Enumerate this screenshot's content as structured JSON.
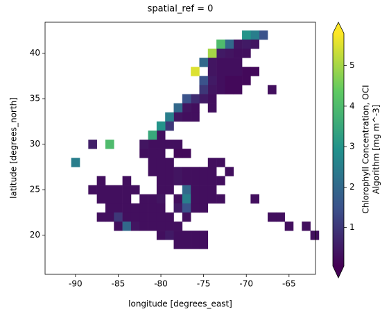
{
  "chart_data": {
    "type": "raster",
    "title": "spatial_ref = 0",
    "x_label": "longitude [degrees_east]",
    "y_label": "latitude [degrees_north]",
    "xlim": [
      -93.56,
      -61.9
    ],
    "ylim": [
      15.7,
      43.4
    ],
    "xticks": [
      -90,
      -85,
      -80,
      -75,
      -70,
      -65
    ],
    "yticks": [
      20,
      25,
      30,
      35,
      40
    ],
    "colormap": "viridis",
    "clim": [
      0.05,
      5.8
    ],
    "cticks": [
      1,
      2,
      3,
      4,
      5
    ],
    "colorbar_label": [
      "Chlorophyll Concentration, OCI",
      "Algorithm [mg m^-3]"
    ],
    "cells": [
      [
        -68,
        42,
        1.5
      ],
      [
        -69,
        42,
        2.5
      ],
      [
        -70,
        42,
        3
      ],
      [
        -69,
        41,
        0.4
      ],
      [
        -70,
        41,
        0.5
      ],
      [
        -71,
        41,
        0.4
      ],
      [
        -72,
        41,
        2
      ],
      [
        -73,
        41,
        4
      ],
      [
        -70,
        40,
        0.3
      ],
      [
        -71,
        40,
        0.3
      ],
      [
        -72,
        40,
        0.4
      ],
      [
        -73,
        40,
        0.5
      ],
      [
        -74,
        40,
        5
      ],
      [
        -71,
        39,
        0.3
      ],
      [
        -72,
        39,
        0.3
      ],
      [
        -73,
        39,
        0.3
      ],
      [
        -74,
        39,
        0.4
      ],
      [
        -75,
        39,
        2
      ],
      [
        -69,
        38,
        0.2
      ],
      [
        -70,
        38,
        0.2
      ],
      [
        -71,
        38,
        0.3
      ],
      [
        -72,
        38,
        0.3
      ],
      [
        -73,
        38,
        0.3
      ],
      [
        -74,
        38,
        0.4
      ],
      [
        -76,
        38,
        5.5
      ],
      [
        -70,
        37,
        0.2
      ],
      [
        -71,
        37,
        0.2
      ],
      [
        -72,
        37,
        0.2
      ],
      [
        -73,
        37,
        0.3
      ],
      [
        -74,
        37,
        0.5
      ],
      [
        -75,
        37,
        1.5
      ],
      [
        -67,
        36,
        0.3
      ],
      [
        -71,
        36,
        0.2
      ],
      [
        -72,
        36,
        0.2
      ],
      [
        -73,
        36,
        0.3
      ],
      [
        -74,
        36,
        0.4
      ],
      [
        -75,
        36,
        1
      ],
      [
        -74,
        35,
        0.3
      ],
      [
        -75,
        35,
        0.5
      ],
      [
        -76,
        35,
        0.8
      ],
      [
        -77,
        35,
        1.5
      ],
      [
        -74,
        34,
        0.3
      ],
      [
        -76,
        34,
        0.3
      ],
      [
        -77,
        34,
        0.4
      ],
      [
        -78,
        34,
        2
      ],
      [
        -76,
        33,
        0.3
      ],
      [
        -77,
        33,
        0.3
      ],
      [
        -78,
        33,
        0.4
      ],
      [
        -79,
        33,
        2.5
      ],
      [
        -79,
        32,
        1
      ],
      [
        -80,
        32,
        3
      ],
      [
        -80,
        31,
        0.3
      ],
      [
        -81,
        31,
        3.5
      ],
      [
        -78,
        30,
        0.3
      ],
      [
        -79,
        30,
        0.3
      ],
      [
        -80,
        30,
        0.3
      ],
      [
        -81,
        30,
        0.3
      ],
      [
        -82,
        30,
        0.4
      ],
      [
        -86,
        30,
        4
      ],
      [
        -88,
        30,
        0.6
      ],
      [
        -77,
        29,
        0.2
      ],
      [
        -78,
        29,
        0.2
      ],
      [
        -80,
        29,
        0.3
      ],
      [
        -81,
        29,
        0.3
      ],
      [
        -82,
        29,
        0.3
      ],
      [
        -90,
        28,
        2.5
      ],
      [
        -81,
        28,
        0.3
      ],
      [
        -80,
        28,
        0.3
      ],
      [
        -79,
        28,
        0.3
      ],
      [
        -74,
        28,
        0.3
      ],
      [
        -73,
        28,
        0.3
      ],
      [
        -81,
        27,
        0.3
      ],
      [
        -80,
        27,
        0.3
      ],
      [
        -79,
        27,
        0.3
      ],
      [
        -78,
        27,
        0.4
      ],
      [
        -77,
        27,
        0.3
      ],
      [
        -76,
        27,
        0.3
      ],
      [
        -75,
        27,
        0.3
      ],
      [
        -74,
        27,
        0.3
      ],
      [
        -72,
        27,
        0.3
      ],
      [
        -87,
        26,
        0.3
      ],
      [
        -84,
        26,
        0.3
      ],
      [
        -80,
        26,
        0.3
      ],
      [
        -79,
        26,
        0.3
      ],
      [
        -78,
        26,
        0.4
      ],
      [
        -77,
        26,
        0.3
      ],
      [
        -76,
        26,
        0.3
      ],
      [
        -75,
        26,
        0.3
      ],
      [
        -74,
        26,
        0.3
      ],
      [
        -73,
        26,
        0.3
      ],
      [
        -88,
        25,
        0.3
      ],
      [
        -87,
        25,
        0.3
      ],
      [
        -86,
        25,
        0.3
      ],
      [
        -85,
        25,
        0.3
      ],
      [
        -84,
        25,
        0.3
      ],
      [
        -83,
        25,
        0.3
      ],
      [
        -80,
        25,
        0.3
      ],
      [
        -79,
        25,
        0.3
      ],
      [
        -77,
        25,
        2
      ],
      [
        -76,
        25,
        0.3
      ],
      [
        -75,
        25,
        0.3
      ],
      [
        -74,
        25,
        0.3
      ],
      [
        -87,
        24,
        0.3
      ],
      [
        -86,
        24,
        0.3
      ],
      [
        -85,
        24,
        0.3
      ],
      [
        -84,
        24,
        0.3
      ],
      [
        -82,
        24,
        0.3
      ],
      [
        -81,
        24,
        0.3
      ],
      [
        -80,
        24,
        0.4
      ],
      [
        -78,
        24,
        0.3
      ],
      [
        -77,
        24,
        2.5
      ],
      [
        -76,
        24,
        0.3
      ],
      [
        -75,
        24,
        0.3
      ],
      [
        -74,
        24,
        0.3
      ],
      [
        -73,
        24,
        0.3
      ],
      [
        -69,
        24,
        0.3
      ],
      [
        -86,
        23,
        0.3
      ],
      [
        -85,
        23,
        0.3
      ],
      [
        -84,
        23,
        0.3
      ],
      [
        -83,
        23,
        0.3
      ],
      [
        -82,
        23,
        0.3
      ],
      [
        -81,
        23,
        0.3
      ],
      [
        -80,
        23,
        0.3
      ],
      [
        -78,
        23,
        0.5
      ],
      [
        -77,
        23,
        1.5
      ],
      [
        -76,
        23,
        0.3
      ],
      [
        -75,
        23,
        0.3
      ],
      [
        -87,
        22,
        0.3
      ],
      [
        -86,
        22,
        0.3
      ],
      [
        -85,
        22,
        1
      ],
      [
        -84,
        22,
        0.3
      ],
      [
        -83,
        22,
        0.3
      ],
      [
        -82,
        22,
        0.3
      ],
      [
        -81,
        22,
        0.3
      ],
      [
        -80,
        22,
        0.3
      ],
      [
        -79,
        22,
        0.3
      ],
      [
        -77,
        22,
        0.3
      ],
      [
        -67,
        22,
        0.3
      ],
      [
        -66,
        22,
        0.3
      ],
      [
        -85,
        21,
        0.3
      ],
      [
        -84,
        21,
        2
      ],
      [
        -83,
        21,
        0.4
      ],
      [
        -82,
        21,
        0.3
      ],
      [
        -81,
        21,
        0.3
      ],
      [
        -80,
        21,
        0.3
      ],
      [
        -79,
        21,
        0.3
      ],
      [
        -78,
        21,
        0.3
      ],
      [
        -65,
        21,
        0.3
      ],
      [
        -63,
        21,
        0.3
      ],
      [
        -80,
        20,
        0.3
      ],
      [
        -79,
        20,
        0.5
      ],
      [
        -78,
        20,
        0.3
      ],
      [
        -77,
        20,
        0.3
      ],
      [
        -76,
        20,
        0.3
      ],
      [
        -75,
        20,
        0.3
      ],
      [
        -62,
        20,
        0.3
      ],
      [
        -78,
        19,
        0.3
      ],
      [
        -77,
        19,
        0.3
      ],
      [
        -76,
        19,
        0.3
      ],
      [
        -75,
        19,
        0.3
      ]
    ]
  }
}
